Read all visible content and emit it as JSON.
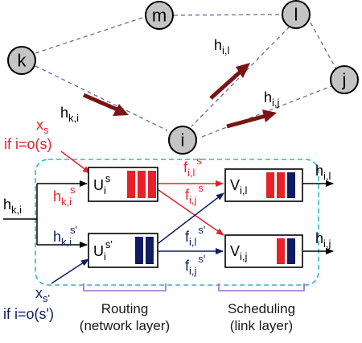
{
  "nodes": {
    "m": "m",
    "l": "l",
    "k": "k",
    "j": "j",
    "i": "i"
  },
  "top_labels": {
    "h_il": {
      "base": "h",
      "sub": "i,l"
    },
    "h_ki": {
      "base": "h",
      "sub": "k,i"
    },
    "h_ij": {
      "base": "h",
      "sub": "i,j"
    }
  },
  "xs": {
    "base": "x",
    "sub": "s",
    "cond": "if i=o(s)"
  },
  "xs2": {
    "base": "x",
    "sub": "s'",
    "cond": "if i=o(s')"
  },
  "input_label": {
    "base": "h",
    "sub": "k,i"
  },
  "branch_red": {
    "base": "h",
    "sub": "k,i",
    "sup": "s"
  },
  "branch_blue": {
    "base": "h",
    "sub": "k,i",
    "sup": "s'"
  },
  "queues": {
    "Us": {
      "base": "U",
      "sub": "i",
      "sup": "s"
    },
    "Us2": {
      "base": "U",
      "sub": "i",
      "sup": "s'"
    },
    "Vil": {
      "base": "V",
      "sub": "i,l"
    },
    "Vij": {
      "base": "V",
      "sub": "i,j"
    }
  },
  "flows": {
    "f_il_s": {
      "base": "f",
      "sub": "i,l",
      "sup": "s"
    },
    "f_ij_s": {
      "base": "f",
      "sub": "i,j",
      "sup": "s"
    },
    "f_il_s2": {
      "base": "f",
      "sub": "i,l",
      "sup": "s'"
    },
    "f_ij_s2": {
      "base": "f",
      "sub": "i,j",
      "sup": "s'"
    }
  },
  "outputs": {
    "h_il": {
      "base": "h",
      "sub": "i,l"
    },
    "h_ij": {
      "base": "h",
      "sub": "i,j"
    }
  },
  "captions": {
    "routing_1": "Routing",
    "routing_2": "(network layer)",
    "scheduling_1": "Scheduling",
    "scheduling_2": "(link layer)"
  },
  "colors": {
    "red": "#e8202a",
    "navy": "#0f1c62",
    "dark_red_arrow": "#7a1414",
    "node_fill": "#c4c4c4",
    "dashed_edge": "#5e6fa8",
    "cyan_box": "#2bb7c4",
    "bracket": "#9a6cc8"
  }
}
